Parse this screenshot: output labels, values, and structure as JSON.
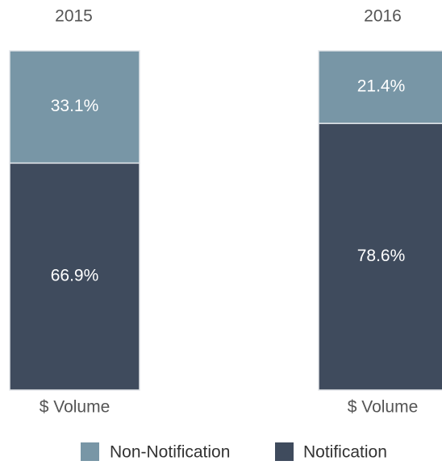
{
  "chart_data": [
    {
      "type": "stacked_bar",
      "title": "2015",
      "categories": [
        "$ Volume"
      ],
      "ylim": [
        0,
        100
      ],
      "series": [
        {
          "name": "Non-Notification",
          "color": "#7896a6",
          "values": [
            33.1
          ],
          "value_labels": [
            "33.1%"
          ]
        },
        {
          "name": "Notification",
          "color": "#3f4b5d",
          "values": [
            66.9
          ],
          "value_labels": [
            "66.9%"
          ]
        }
      ]
    },
    {
      "type": "stacked_bar",
      "title": "2016",
      "categories": [
        "$ Volume"
      ],
      "ylim": [
        0,
        100
      ],
      "series": [
        {
          "name": "Non-Notification",
          "color": "#7896a6",
          "values": [
            21.4
          ],
          "value_labels": [
            "21.4%"
          ]
        },
        {
          "name": "Notification",
          "color": "#3f4b5d",
          "values": [
            78.6
          ],
          "value_labels": [
            "78.6%"
          ]
        }
      ]
    }
  ]
}
